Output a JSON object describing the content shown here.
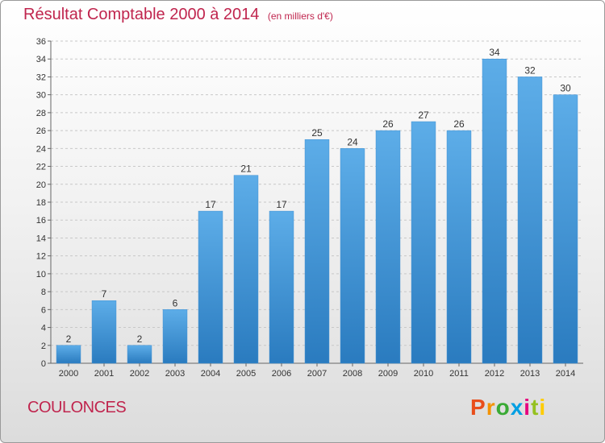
{
  "title": "Résultat Comptable 2000 à 2014",
  "unit_note": "(en milliers d'€)",
  "commune": "COULONCES",
  "brand": {
    "name": "Proxiti",
    "colors": [
      "#e94e1b",
      "#f39200",
      "#3aaa35",
      "#009fe3",
      "#e6007e",
      "#95c11f",
      "#ffcc00"
    ]
  },
  "colors": {
    "bar_light": "#5dade8",
    "bar_dark": "#2a7bbf",
    "grid": "#c8c8c8",
    "title": "#c0254e"
  },
  "chart_data": {
    "type": "bar",
    "categories": [
      "2000",
      "2001",
      "2002",
      "2003",
      "2004",
      "2005",
      "2006",
      "2007",
      "2008",
      "2009",
      "2010",
      "2011",
      "2012",
      "2013",
      "2014"
    ],
    "values": [
      2,
      7,
      2,
      6,
      17,
      21,
      17,
      25,
      24,
      26,
      27,
      26,
      34,
      32,
      30
    ],
    "ylim": [
      0,
      36
    ],
    "yticks": [
      0,
      2,
      4,
      6,
      8,
      10,
      12,
      14,
      16,
      18,
      20,
      22,
      24,
      26,
      28,
      30,
      32,
      34,
      36
    ],
    "grid": "horizontal dashed",
    "legend": "none"
  }
}
